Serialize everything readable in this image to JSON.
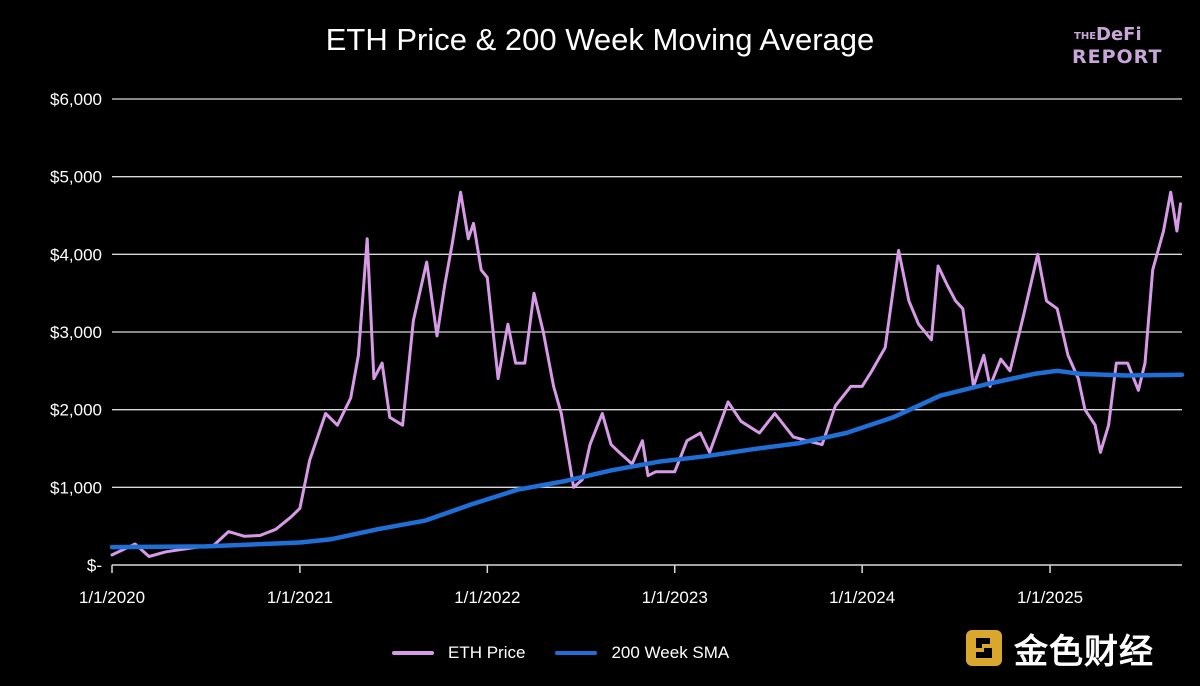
{
  "chart_data": {
    "type": "line",
    "title": "ETH Price & 200 Week Moving Average",
    "xlabel": "",
    "ylabel": "",
    "x_ticks": [
      "1/1/2020",
      "1/1/2021",
      "1/1/2022",
      "1/1/2023",
      "1/1/2024",
      "1/1/2025"
    ],
    "y_ticks": [
      "$-",
      "$1,000",
      "$2,000",
      "$3,000",
      "$4,000",
      "$5,000",
      "$6,000"
    ],
    "ylim": [
      0,
      6000
    ],
    "xlim": [
      "2020-01-01",
      "2025-09-15"
    ],
    "grid": "horizontal",
    "legend_position": "bottom",
    "series": [
      {
        "name": "ETH Price",
        "color": "#d79ae6",
        "points": [
          [
            "2020-01-01",
            130
          ],
          [
            "2020-02-15",
            270
          ],
          [
            "2020-03-13",
            110
          ],
          [
            "2020-04-15",
            170
          ],
          [
            "2020-05-15",
            200
          ],
          [
            "2020-06-15",
            230
          ],
          [
            "2020-07-15",
            240
          ],
          [
            "2020-08-15",
            430
          ],
          [
            "2020-09-15",
            370
          ],
          [
            "2020-10-15",
            380
          ],
          [
            "2020-11-15",
            460
          ],
          [
            "2020-12-15",
            620
          ],
          [
            "2021-01-01",
            730
          ],
          [
            "2021-01-20",
            1350
          ],
          [
            "2021-02-20",
            1950
          ],
          [
            "2021-03-15",
            1800
          ],
          [
            "2021-04-10",
            2150
          ],
          [
            "2021-04-25",
            2700
          ],
          [
            "2021-05-12",
            4200
          ],
          [
            "2021-05-25",
            2400
          ],
          [
            "2021-06-10",
            2600
          ],
          [
            "2021-06-25",
            1900
          ],
          [
            "2021-07-20",
            1800
          ],
          [
            "2021-08-10",
            3150
          ],
          [
            "2021-09-05",
            3900
          ],
          [
            "2021-09-25",
            2950
          ],
          [
            "2021-10-10",
            3600
          ],
          [
            "2021-10-25",
            4150
          ],
          [
            "2021-11-10",
            4800
          ],
          [
            "2021-11-25",
            4200
          ],
          [
            "2021-12-05",
            4400
          ],
          [
            "2021-12-20",
            3800
          ],
          [
            "2022-01-01",
            3700
          ],
          [
            "2022-01-22",
            2400
          ],
          [
            "2022-02-10",
            3100
          ],
          [
            "2022-02-25",
            2600
          ],
          [
            "2022-03-15",
            2600
          ],
          [
            "2022-04-02",
            3500
          ],
          [
            "2022-04-20",
            3000
          ],
          [
            "2022-05-10",
            2300
          ],
          [
            "2022-05-25",
            1950
          ],
          [
            "2022-06-18",
            1000
          ],
          [
            "2022-07-05",
            1100
          ],
          [
            "2022-07-20",
            1550
          ],
          [
            "2022-08-13",
            1950
          ],
          [
            "2022-08-30",
            1550
          ],
          [
            "2022-09-15",
            1450
          ],
          [
            "2022-10-10",
            1300
          ],
          [
            "2022-10-30",
            1600
          ],
          [
            "2022-11-10",
            1150
          ],
          [
            "2022-11-25",
            1200
          ],
          [
            "2022-12-20",
            1200
          ],
          [
            "2023-01-01",
            1200
          ],
          [
            "2023-01-25",
            1600
          ],
          [
            "2023-02-20",
            1700
          ],
          [
            "2023-03-10",
            1450
          ],
          [
            "2023-04-15",
            2100
          ],
          [
            "2023-05-10",
            1850
          ],
          [
            "2023-06-15",
            1700
          ],
          [
            "2023-07-15",
            1950
          ],
          [
            "2023-08-20",
            1650
          ],
          [
            "2023-09-15",
            1600
          ],
          [
            "2023-10-15",
            1550
          ],
          [
            "2023-11-10",
            2050
          ],
          [
            "2023-12-10",
            2300
          ],
          [
            "2024-01-01",
            2300
          ],
          [
            "2024-01-20",
            2500
          ],
          [
            "2024-02-15",
            2800
          ],
          [
            "2024-03-12",
            4050
          ],
          [
            "2024-04-01",
            3400
          ],
          [
            "2024-04-20",
            3100
          ],
          [
            "2024-05-15",
            2900
          ],
          [
            "2024-05-28",
            3850
          ],
          [
            "2024-06-15",
            3600
          ],
          [
            "2024-07-01",
            3400
          ],
          [
            "2024-07-15",
            3300
          ],
          [
            "2024-08-05",
            2300
          ],
          [
            "2024-08-25",
            2700
          ],
          [
            "2024-09-06",
            2300
          ],
          [
            "2024-09-27",
            2650
          ],
          [
            "2024-10-15",
            2500
          ],
          [
            "2024-11-10",
            3200
          ],
          [
            "2024-12-08",
            4000
          ],
          [
            "2024-12-25",
            3400
          ],
          [
            "2025-01-15",
            3300
          ],
          [
            "2025-02-05",
            2700
          ],
          [
            "2025-02-25",
            2400
          ],
          [
            "2025-03-10",
            2000
          ],
          [
            "2025-03-30",
            1800
          ],
          [
            "2025-04-09",
            1450
          ],
          [
            "2025-04-25",
            1800
          ],
          [
            "2025-05-10",
            2600
          ],
          [
            "2025-06-01",
            2600
          ],
          [
            "2025-06-22",
            2250
          ],
          [
            "2025-07-05",
            2600
          ],
          [
            "2025-07-20",
            3800
          ],
          [
            "2025-08-10",
            4300
          ],
          [
            "2025-08-24",
            4800
          ],
          [
            "2025-09-05",
            4300
          ],
          [
            "2025-09-12",
            4650
          ]
        ]
      },
      {
        "name": "200 Week SMA",
        "color": "#1f6fd6",
        "points": [
          [
            "2020-01-01",
            230
          ],
          [
            "2020-07-01",
            240
          ],
          [
            "2021-01-01",
            290
          ],
          [
            "2021-03-01",
            330
          ],
          [
            "2021-06-01",
            460
          ],
          [
            "2021-09-01",
            570
          ],
          [
            "2021-12-01",
            780
          ],
          [
            "2022-03-01",
            970
          ],
          [
            "2022-06-01",
            1080
          ],
          [
            "2022-09-01",
            1220
          ],
          [
            "2022-12-01",
            1330
          ],
          [
            "2023-03-01",
            1400
          ],
          [
            "2023-06-01",
            1490
          ],
          [
            "2023-09-01",
            1570
          ],
          [
            "2023-12-01",
            1700
          ],
          [
            "2024-03-01",
            1900
          ],
          [
            "2024-06-01",
            2180
          ],
          [
            "2024-09-01",
            2330
          ],
          [
            "2024-12-01",
            2460
          ],
          [
            "2025-01-15",
            2500
          ],
          [
            "2025-03-01",
            2460
          ],
          [
            "2025-06-01",
            2440
          ],
          [
            "2025-09-15",
            2450
          ]
        ]
      }
    ]
  },
  "logo": {
    "line1": "THE",
    "line2": "DeFi",
    "line3": "REPORT"
  },
  "watermark": {
    "text": "金色财经"
  }
}
